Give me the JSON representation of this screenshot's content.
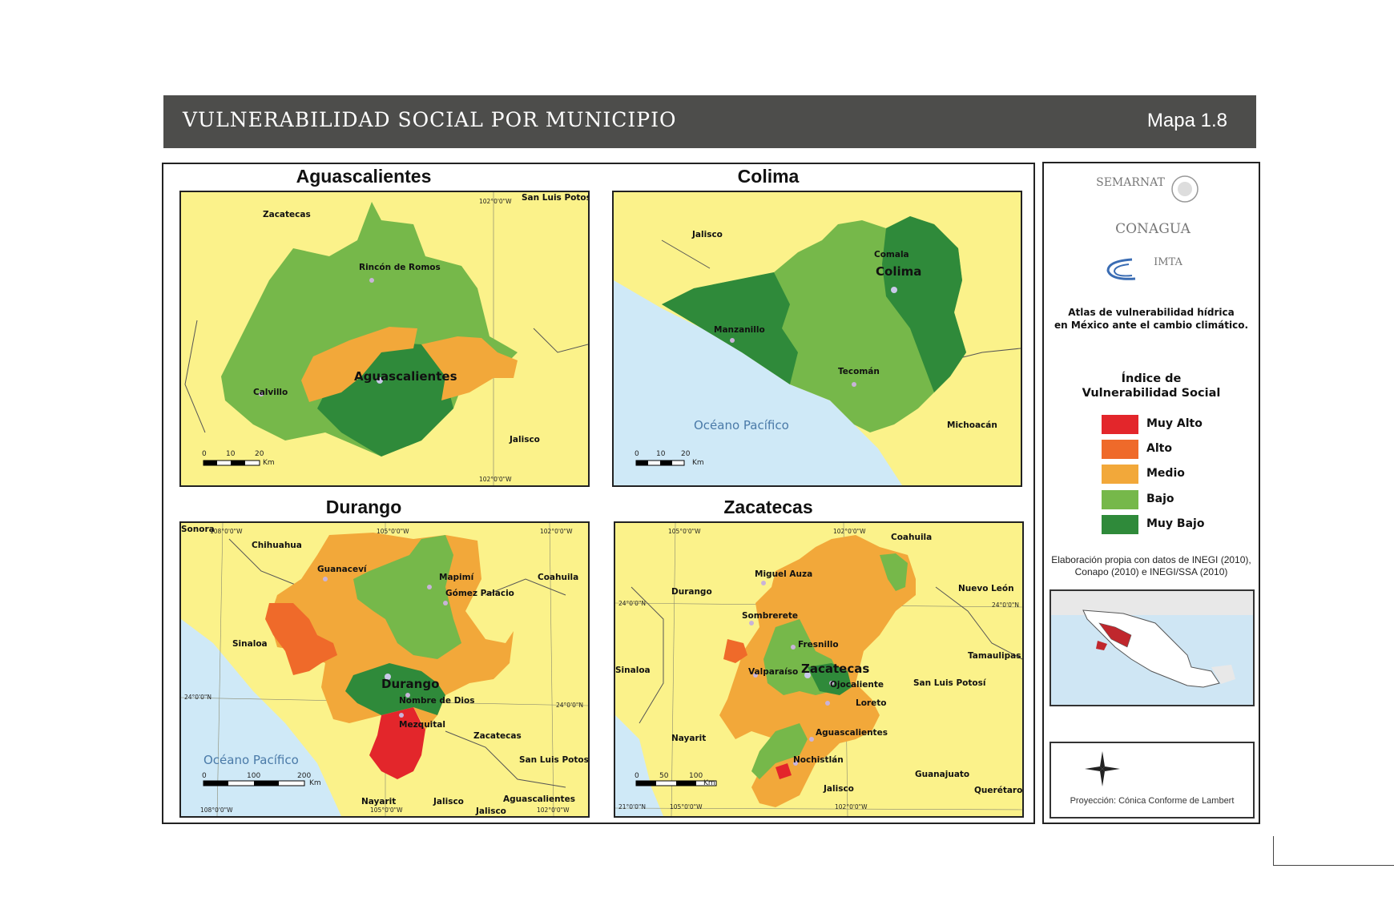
{
  "header": {
    "title": "VULNERABILIDAD SOCIAL POR MUNICIPIO",
    "map_number": "Mapa 1.8"
  },
  "colors": {
    "land_bg": "#fbf28a",
    "ocean": "#cfe9f7",
    "muy_alto": "#e3262b",
    "alto": "#ef6a2a",
    "medio": "#f2a83a",
    "bajo": "#76b84a",
    "muy_bajo": "#2f8a3a",
    "header_bg": "#4d4d4b"
  },
  "panels": {
    "aguascalientes": {
      "title": "Aguascalientes",
      "labels": {
        "zacatecas": "Zacatecas",
        "sanluis": "San Luis Potosí",
        "rincon": "Rincón de Romos",
        "capital": "Aguascalientes",
        "calvillo": "Calvillo",
        "jalisco": "Jalisco"
      },
      "coords": {
        "top": "102°0'0\"W",
        "bottom": "102°0'0\"W"
      },
      "scale": {
        "t0": "0",
        "t1": "10",
        "t2": "20",
        "unit": "Km"
      }
    },
    "colima": {
      "title": "Colima",
      "labels": {
        "jalisco": "Jalisco",
        "comala": "Comala",
        "capital": "Colima",
        "manzanillo": "Manzanillo",
        "tecoman": "Tecomán",
        "ocean": "Océano Pacífico",
        "michoacan": "Michoacán"
      },
      "scale": {
        "t0": "0",
        "t1": "10",
        "t2": "20",
        "unit": "Km"
      }
    },
    "durango": {
      "title": "Durango",
      "labels": {
        "sonora": "Sonora",
        "chihuahua": "Chihuahua",
        "guanacevi": "Guanaceví",
        "mapimi": "Mapimí",
        "gomez": "Gómez Palacio",
        "coahuila": "Coahuila",
        "sinaloa": "Sinaloa",
        "capital": "Durango",
        "nombre": "Nombre de Dios",
        "mezquital": "Mezquital",
        "zacatecas": "Zacatecas",
        "ocean": "Océano Pacífico",
        "sanluis": "San Luis Potosí",
        "nayarit": "Nayarit",
        "jalisco": "Jalisco",
        "aguas": "Aguascalientes",
        "jalisco2": "Jalisco"
      },
      "coords": {
        "c1": "108°0'0\"W",
        "c2": "105°0'0\"W",
        "c3": "102°0'0\"W",
        "c4": "24°0'0\"N",
        "c5": "24°0'0\"N",
        "c6": "108°0'0\"W",
        "c7": "105°0'0\"W",
        "c8": "102°0'0\"W"
      },
      "scale": {
        "t0": "0",
        "t1": "100",
        "t2": "200",
        "unit": "Km"
      }
    },
    "zacatecas": {
      "title": "Zacatecas",
      "labels": {
        "coahuila": "Coahuila",
        "miguel": "Miguel Auza",
        "durango": "Durango",
        "nuevoleon": "Nuevo León",
        "sombrerete": "Sombrerete",
        "fresnillo": "Fresnillo",
        "tamaulipas": "Tamaulipas",
        "sinaloa": "Sinaloa",
        "valparaiso": "Valparaíso",
        "capital": "Zacatecas",
        "ojocaliente": "Ojocaliente",
        "sanluis": "San Luis Potosí",
        "loreto": "Loreto",
        "aguas": "Aguascalientes",
        "nayarit": "Nayarit",
        "nochistlan": "Nochistlán",
        "guanajuato": "Guanajuato",
        "jalisco": "Jalisco",
        "queretaro": "Querétaro"
      },
      "coords": {
        "c1": "105°0'0\"W",
        "c2": "102°0'0\"W",
        "c3": "24°0'0\"N",
        "c4": "24°0'0\"N",
        "c5": "21°0'0\"N",
        "c6": "105°0'0\"W",
        "c7": "102°0'0\"W"
      },
      "scale": {
        "t0": "0",
        "t1": "50",
        "t2": "100",
        "unit": "Km"
      }
    }
  },
  "sidebar": {
    "logos": {
      "semarnat": "SEMARNAT",
      "conagua": "CONAGUA",
      "imta": "IMTA"
    },
    "atlas_line1": "Atlas de vulnerabilidad  hídrica",
    "atlas_line2": "en México ante el cambio climático.",
    "legend_title1": "Índice de",
    "legend_title2": "Vulnerabilidad Social",
    "legend": [
      {
        "label": "Muy Alto",
        "color": "#e3262b"
      },
      {
        "label": "Alto",
        "color": "#ef6a2a"
      },
      {
        "label": "Medio",
        "color": "#f2a83a"
      },
      {
        "label": "Bajo",
        "color": "#76b84a"
      },
      {
        "label": "Muy Bajo",
        "color": "#2f8a3a"
      }
    ],
    "source_line1": "Elaboración propia con datos de INEGI (2010),",
    "source_line2": "Conapo (2010) e INEGI/SSA (2010)",
    "projection": "Proyección: Cónica Conforme de Lambert"
  }
}
